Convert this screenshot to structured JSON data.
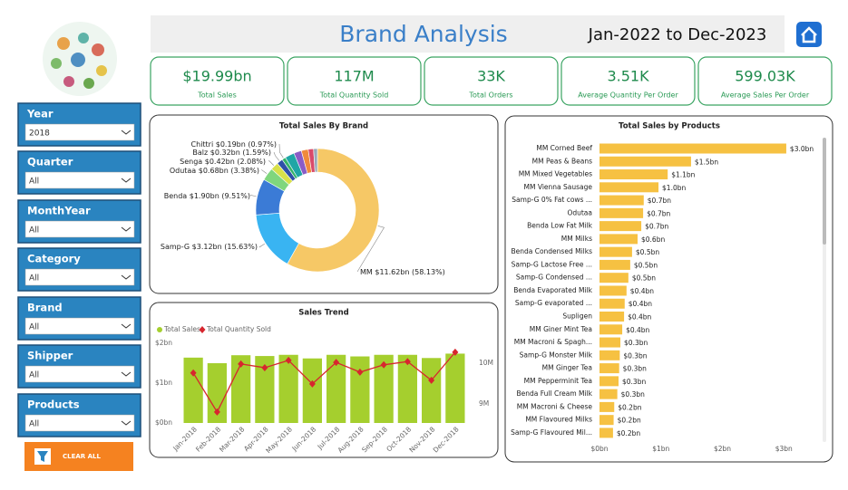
{
  "header": {
    "title": "Brand Analysis",
    "date_range": "Jan-2022 to Dec-2023"
  },
  "kpis": [
    {
      "value": "$19.99bn",
      "label": "Total Sales"
    },
    {
      "value": "117M",
      "label": "Total Quantity Sold"
    },
    {
      "value": "33K",
      "label": "Total Orders"
    },
    {
      "value": "3.51K",
      "label": "Average Quantity Per Order"
    },
    {
      "value": "599.03K",
      "label": "Average Sales Per Order"
    }
  ],
  "filters": [
    {
      "name": "Year",
      "selected": "2018"
    },
    {
      "name": "Quarter",
      "selected": "All"
    },
    {
      "name": "MonthYear",
      "selected": "All"
    },
    {
      "name": "Category",
      "selected": "All"
    },
    {
      "name": "Brand",
      "selected": "All"
    },
    {
      "name": "Shipper",
      "selected": "All"
    },
    {
      "name": "Products",
      "selected": "All"
    }
  ],
  "clear_button": "CLEAR ALL",
  "charts": [
    {
      "type": "donut",
      "title": "Total Sales By Brand",
      "categories": [
        "MM",
        "Samp-G",
        "Benda",
        "Odutaa",
        "Senga",
        "Balz",
        "Chittri",
        null,
        null,
        null,
        null,
        null
      ],
      "values": [
        58.13,
        15.63,
        9.51,
        3.38,
        2.08,
        1.59,
        0.97,
        2.5,
        2.0,
        1.8,
        1.4,
        1.01
      ],
      "value_labels": [
        "$11.62bn (58.13%)",
        "$3.12bn (15.63%)",
        "$1.90bn (9.51%)",
        "$0.68bn (3.38%)",
        "$0.42bn (2.08%)",
        "$0.32bn (1.59%)",
        "$0.19bn (0.97%)",
        null,
        null,
        null,
        null,
        null
      ],
      "colors": [
        "#f6c866",
        "#39b4f2",
        "#3b7bd6",
        "#7fd67d",
        "#d8e04a",
        "#2f4fa8",
        "#35b36a",
        "#1fa6a6",
        "#8a5cc6",
        "#f08a3c",
        "#d94a6a",
        "#9aa8b8"
      ]
    },
    {
      "type": "combo",
      "title": "Sales Trend",
      "categories": [
        "Jan-2018",
        "Feb-2018",
        "Mar-2018",
        "Apr-2018",
        "May-2018",
        "Jun-2018",
        "Jul-2018",
        "Aug-2018",
        "Sep-2018",
        "Oct-2018",
        "Nov-2018",
        "Dec-2018"
      ],
      "series": [
        {
          "name": "Total Sales",
          "type": "bar",
          "color": "#a5cf2e",
          "values": [
            1.64,
            1.5,
            1.7,
            1.68,
            1.71,
            1.62,
            1.71,
            1.67,
            1.71,
            1.71,
            1.63,
            1.74
          ]
        },
        {
          "name": "Total Quantity Sold",
          "type": "line",
          "axis": "y2",
          "color": "#d7262e",
          "values": [
            9.76,
            8.8,
            9.98,
            9.89,
            10.07,
            9.49,
            10.02,
            9.78,
            9.96,
            10.04,
            9.58,
            10.27
          ]
        }
      ],
      "ylim": [
        0,
        2
      ],
      "yticks": [
        {
          "value": 0,
          "label": "$0bn"
        },
        {
          "value": 1,
          "label": "$1bn"
        },
        {
          "value": 2,
          "label": "$2bn"
        }
      ],
      "y2lim": [
        8.53,
        10.49
      ],
      "y2ticks": [
        {
          "value": 9,
          "label": "9M"
        },
        {
          "value": 10,
          "label": "10M"
        }
      ]
    },
    {
      "type": "hbar",
      "title": "Total Sales by Products",
      "categories": [
        "MM Corned Beef",
        "MM Peas & Beans",
        "MM Mixed Vegetables",
        "MM Vienna Sausage",
        "Samp-G 0% Fat cows ...",
        "Odutaa",
        "Benda Low Fat Milk",
        "MM Milks",
        "Benda Condensed Milks",
        "Samp-G Lactose Free ...",
        "Samp-G Condensed ...",
        "Benda Evaporated Milk",
        "Samp-G evaporated ...",
        "Supligen",
        "MM Giner Mint Tea",
        "MM Macroni & Spagh...",
        "Samp-G Monster Milk",
        "MM Ginger Tea",
        "MM Pepperminit Tea",
        "Benda Full Cream Milk",
        "MM Macroni & Cheese",
        "MM Flavoured Milks",
        "Samp-G Flavoured Mil..."
      ],
      "values": [
        3.04,
        1.49,
        1.11,
        0.96,
        0.72,
        0.71,
        0.68,
        0.62,
        0.53,
        0.5,
        0.47,
        0.44,
        0.41,
        0.4,
        0.37,
        0.34,
        0.33,
        0.32,
        0.31,
        0.29,
        0.24,
        0.23,
        0.22
      ],
      "value_labels": [
        "$3.0bn",
        "$1.5bn",
        "$1.1bn",
        "$1.0bn",
        "$0.7bn",
        "$0.7bn",
        "$0.7bn",
        "$0.6bn",
        "$0.5bn",
        "$0.5bn",
        "$0.5bn",
        "$0.4bn",
        "$0.4bn",
        "$0.4bn",
        "$0.4bn",
        "$0.3bn",
        "$0.3bn",
        "$0.3bn",
        "$0.3bn",
        "$0.3bn",
        "$0.2bn",
        "$0.2bn",
        "$0.2bn"
      ],
      "color": "#f6c142",
      "xlim": [
        0,
        3.1
      ],
      "xticks": [
        {
          "value": 0,
          "label": "$0bn"
        },
        {
          "value": 1,
          "label": "$1bn"
        },
        {
          "value": 2,
          "label": "$2bn"
        },
        {
          "value": 3,
          "label": "$3bn"
        }
      ]
    }
  ]
}
